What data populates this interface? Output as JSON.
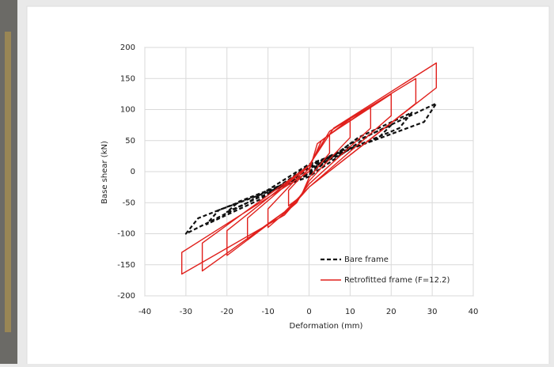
{
  "chart_data": {
    "type": "line",
    "xlabel": "Deformation (mm)",
    "ylabel": "Base shear (kN)",
    "xlim": [
      -40,
      40
    ],
    "xticks": [
      -40,
      -30,
      -20,
      -10,
      0,
      10,
      20,
      30,
      40
    ],
    "ylim": [
      -200,
      200
    ],
    "yticks": [
      -200,
      -150,
      -100,
      -50,
      0,
      50,
      100,
      150,
      200
    ],
    "grid": true,
    "legend": "lower right",
    "series": [
      {
        "name": "Bare frame",
        "color": "#111111",
        "line_style": "dashed",
        "x": [
          0,
          5,
          10,
          8,
          0,
          -5,
          -10,
          -8,
          0,
          10,
          20,
          17,
          0,
          -10,
          -20,
          -17,
          0,
          12,
          25,
          22,
          0,
          -12,
          -25,
          -22,
          0,
          15,
          31,
          28,
          0,
          -15,
          -30,
          -27,
          0
        ],
        "values": [
          0,
          25,
          40,
          28,
          5,
          -18,
          -35,
          -25,
          -3,
          45,
          75,
          55,
          8,
          -35,
          -65,
          -48,
          -5,
          55,
          95,
          70,
          10,
          -45,
          -85,
          -62,
          -8,
          60,
          110,
          80,
          12,
          -50,
          -100,
          -75,
          -5
        ]
      },
      {
        "name": "Retrofitted frame (F=12.2)",
        "color": "#e0201c",
        "line_style": "solid",
        "x": [
          0,
          2,
          5,
          5,
          0,
          -2,
          -5,
          -5,
          0,
          3,
          10,
          10,
          0,
          -3,
          -10,
          -10,
          0,
          4,
          15,
          15,
          0,
          -4,
          -15,
          -15,
          0,
          5,
          20,
          20,
          0,
          -5,
          -20,
          -20,
          0,
          5,
          26,
          26,
          0,
          -6,
          -26,
          -26,
          0,
          6,
          31,
          31,
          0,
          -6,
          -31,
          -31,
          0
        ],
        "values": [
          0,
          45,
          60,
          30,
          -10,
          -40,
          -55,
          -30,
          5,
          50,
          85,
          55,
          -15,
          -50,
          -90,
          -60,
          10,
          55,
          105,
          70,
          -20,
          -55,
          -110,
          -75,
          10,
          60,
          125,
          90,
          -25,
          -60,
          -135,
          -95,
          10,
          65,
          150,
          110,
          -25,
          -65,
          -160,
          -115,
          10,
          70,
          175,
          135,
          -25,
          -70,
          -165,
          -130,
          0
        ]
      }
    ]
  }
}
